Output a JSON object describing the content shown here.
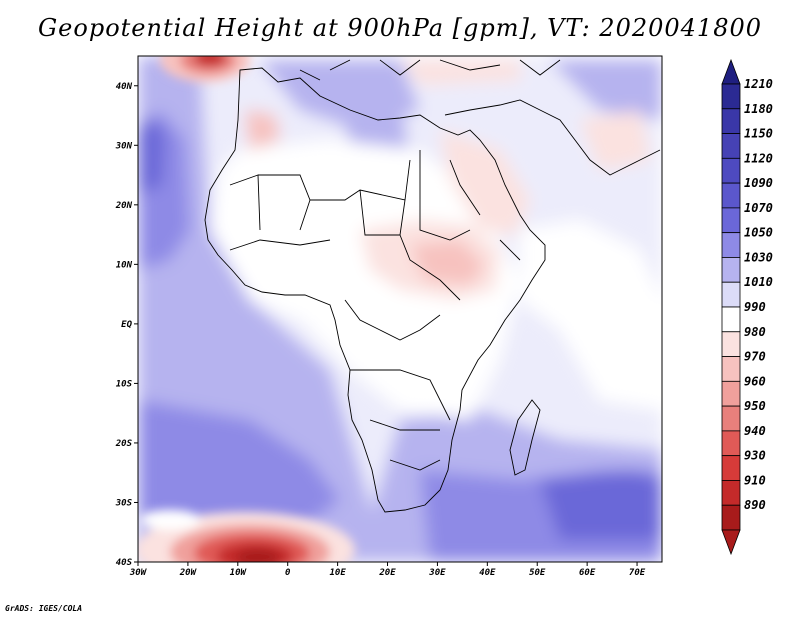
{
  "title": "Geopotential Height at 900hPa [gpm], VT: 2020041800",
  "credit": "GrADS: IGES/COLA",
  "map": {
    "projection": "latlon",
    "lon_range": [
      -30,
      75
    ],
    "lat_range": [
      -40,
      45
    ],
    "lat_ticks": [
      {
        "value": 40,
        "label": "40N"
      },
      {
        "value": 30,
        "label": "30N"
      },
      {
        "value": 20,
        "label": "20N"
      },
      {
        "value": 10,
        "label": "10N"
      },
      {
        "value": 0,
        "label": "EQ"
      },
      {
        "value": -10,
        "label": "10S"
      },
      {
        "value": -20,
        "label": "20S"
      },
      {
        "value": -30,
        "label": "30S"
      },
      {
        "value": -40,
        "label": "40S"
      }
    ],
    "lon_ticks": [
      {
        "value": -30,
        "label": "30W"
      },
      {
        "value": -20,
        "label": "20W"
      },
      {
        "value": -10,
        "label": "10W"
      },
      {
        "value": 0,
        "label": "0"
      },
      {
        "value": 10,
        "label": "10E"
      },
      {
        "value": 20,
        "label": "20E"
      },
      {
        "value": 30,
        "label": "30E"
      },
      {
        "value": 40,
        "label": "40E"
      },
      {
        "value": 50,
        "label": "50E"
      },
      {
        "value": 60,
        "label": "60E"
      },
      {
        "value": 70,
        "label": "70E"
      }
    ]
  },
  "colorbar": {
    "levels": [
      {
        "label": "1210",
        "color": "#2b2a93"
      },
      {
        "label": "1180",
        "color": "#3a37a8"
      },
      {
        "label": "1150",
        "color": "#4642b5"
      },
      {
        "label": "1120",
        "color": "#4e4ac0"
      },
      {
        "label": "1090",
        "color": "#5b57cc"
      },
      {
        "label": "1070",
        "color": "#6b67d8"
      },
      {
        "label": "1050",
        "color": "#8e8ae6"
      },
      {
        "label": "1030",
        "color": "#b6b3ef"
      },
      {
        "label": "1010",
        "color": "#dcdcf8"
      },
      {
        "label": "990",
        "color": "#ffffff"
      },
      {
        "label": "980",
        "color": "#fbe2e0"
      },
      {
        "label": "970",
        "color": "#f7c2bf"
      },
      {
        "label": "960",
        "color": "#f0a09c"
      },
      {
        "label": "950",
        "color": "#e8807c"
      },
      {
        "label": "940",
        "color": "#e05a57"
      },
      {
        "label": "930",
        "color": "#d63b39"
      },
      {
        "label": "910",
        "color": "#c42a2a"
      },
      {
        "label": "890",
        "color": "#a81b1b"
      }
    ],
    "top_arrow_color": "#1f1f80",
    "bottom_arrow_color": "#a81b1b"
  }
}
